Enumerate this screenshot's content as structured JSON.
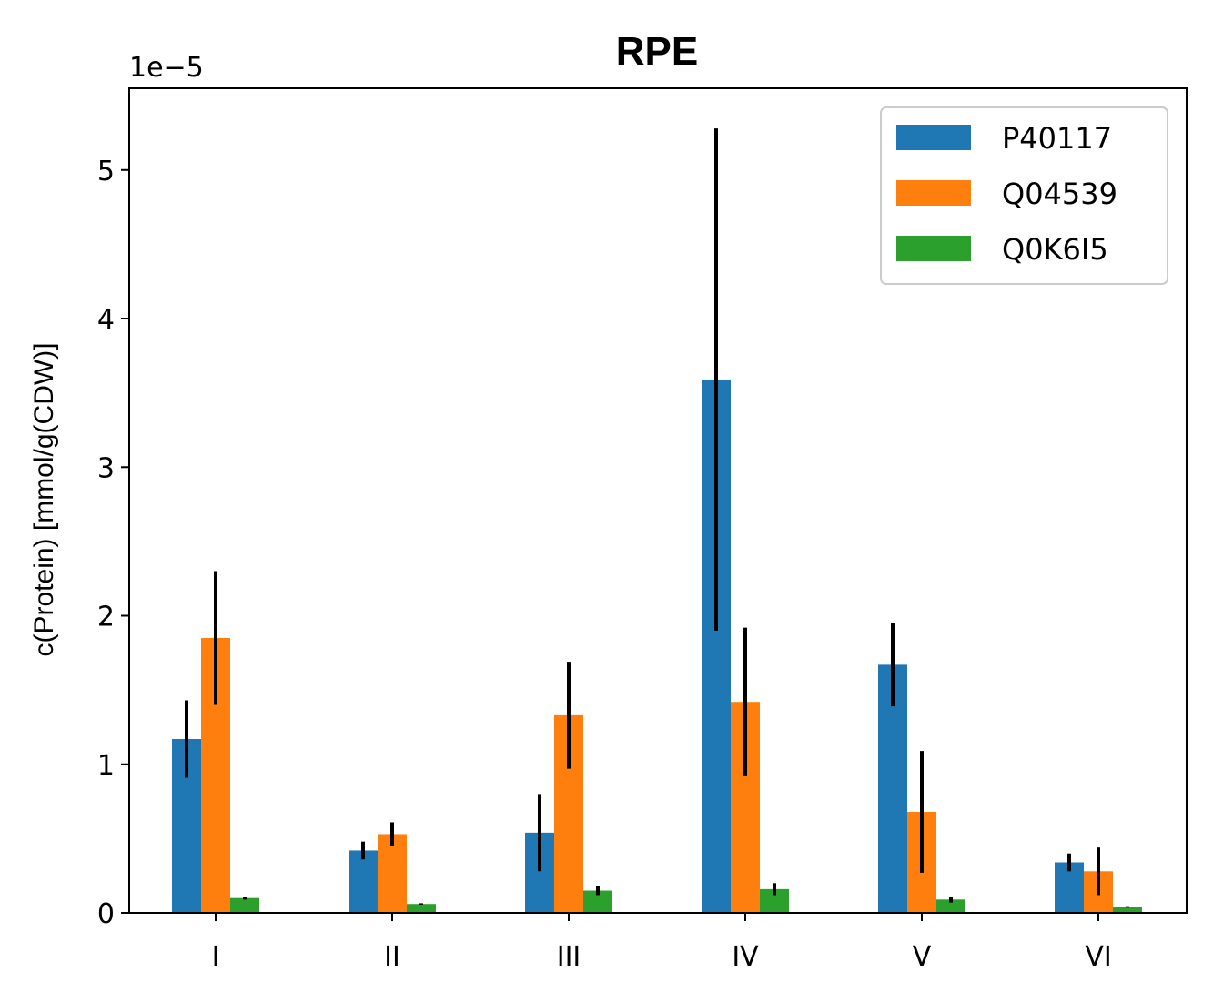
{
  "chart_data": {
    "type": "bar",
    "title": "RPE",
    "xlabel": "",
    "ylabel": "c(Protein) [mmol/g(CDW)]",
    "y_offset_label": "1e−5",
    "y_scale_multiplier": 1e-05,
    "categories": [
      "I",
      "II",
      "III",
      "IV",
      "V",
      "VI"
    ],
    "ylim": [
      0,
      5.55e-05
    ],
    "yticks": [
      0,
      1e-05,
      2e-05,
      3e-05,
      4e-05,
      5e-05
    ],
    "ytick_labels": [
      "0",
      "1",
      "2",
      "3",
      "4",
      "5"
    ],
    "grid": false,
    "legend_position": "top-right",
    "error_bar_color": "#000000",
    "series": [
      {
        "name": "P40117",
        "color": "#1f77b4",
        "values": [
          1.17e-05,
          4.2e-06,
          5.4e-06,
          3.59e-05,
          1.67e-05,
          3.4e-06
        ],
        "errors": [
          2.6e-06,
          6e-07,
          2.6e-06,
          1.69e-05,
          2.8e-06,
          6e-07
        ]
      },
      {
        "name": "Q04539",
        "color": "#ff7f0e",
        "values": [
          1.85e-05,
          5.3e-06,
          1.33e-05,
          1.42e-05,
          6.8e-06,
          2.8e-06
        ],
        "errors": [
          4.5e-06,
          8e-07,
          3.6e-06,
          5e-06,
          4.1e-06,
          1.6e-06
        ]
      },
      {
        "name": "Q0K6I5",
        "color": "#2ca02c",
        "values": [
          1e-06,
          6e-07,
          1.5e-06,
          1.6e-06,
          9e-07,
          4e-07
        ],
        "errors": [
          1e-07,
          5e-08,
          3e-07,
          4e-07,
          2e-07,
          5e-08
        ]
      }
    ]
  }
}
